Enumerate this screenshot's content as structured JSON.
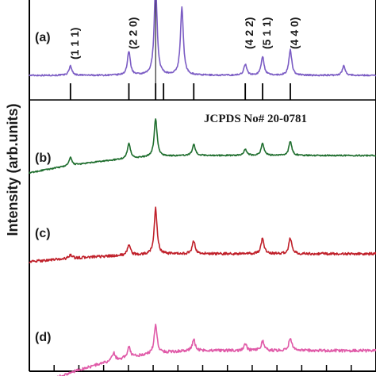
{
  "chart_data": {
    "type": "line",
    "title": "",
    "xlabel": "",
    "ylabel": "Intensity (arb.units)",
    "x_range": [
      10,
      80
    ],
    "reference_label": "JCPDS No# 20-0781",
    "reference_peaks": [
      18.3,
      30.1,
      35.5,
      37.1,
      43.2,
      53.6,
      57.1,
      62.7
    ],
    "hkl_labels": [
      {
        "text": "(1 1 1)",
        "x": 18.3
      },
      {
        "text": "(2 2 0)",
        "x": 30.1
      },
      {
        "text": "(4 2 2)",
        "x": 53.6
      },
      {
        "text": "(5 1 1)",
        "x": 57.1
      },
      {
        "text": "(4 4 0)",
        "x": 62.7
      }
    ],
    "series": [
      {
        "name": "(a)",
        "color": "#7b5cc4",
        "baseline_start": 0.0,
        "baseline_end": 0.0,
        "noise": 0.9,
        "peaks": [
          [
            18.3,
            12
          ],
          [
            30.1,
            30
          ],
          [
            35.5,
            115
          ],
          [
            40.8,
            85
          ],
          [
            53.6,
            14
          ],
          [
            57.1,
            24
          ],
          [
            62.7,
            32
          ],
          [
            73.5,
            12
          ]
        ]
      },
      {
        "name": "(b)",
        "color": "#1f6e2e",
        "baseline_start": -22.0,
        "baseline_end": 0.0,
        "noise": 0.8,
        "peaks": [
          [
            18.3,
            10
          ],
          [
            30.1,
            20
          ],
          [
            35.5,
            48
          ],
          [
            43.2,
            14
          ],
          [
            53.6,
            8
          ],
          [
            57.1,
            15
          ],
          [
            62.7,
            18
          ]
        ]
      },
      {
        "name": "(c)",
        "color": "#c0202a",
        "baseline_start": -10.0,
        "baseline_end": 0.0,
        "noise": 1.6,
        "peaks": [
          [
            18.3,
            5
          ],
          [
            30.1,
            14
          ],
          [
            35.5,
            58
          ],
          [
            43.2,
            16
          ],
          [
            57.1,
            20
          ],
          [
            62.7,
            20
          ]
        ]
      },
      {
        "name": "(d)",
        "color": "#e05aa8",
        "baseline_start": -48.0,
        "baseline_end": 0.0,
        "noise": 1.8,
        "peaks": [
          [
            27.0,
            10
          ],
          [
            30.1,
            14
          ],
          [
            35.5,
            36
          ],
          [
            43.2,
            14
          ],
          [
            53.6,
            8
          ],
          [
            57.1,
            12
          ],
          [
            62.7,
            16
          ]
        ]
      }
    ],
    "grid": false,
    "legend": "none"
  }
}
